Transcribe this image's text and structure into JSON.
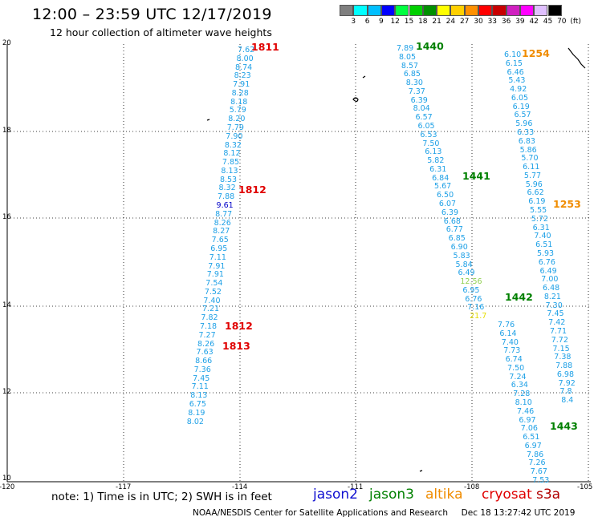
{
  "header": {
    "title": "12:00 – 23:59 UTC 12/17/2019",
    "subtitle": "12 hour collection of altimeter wave heights"
  },
  "legend": {
    "colors": [
      "#7f7f7f",
      "#00ffff",
      "#00bfff",
      "#0000ff",
      "#00ff40",
      "#00d000",
      "#009000",
      "#ffff00",
      "#ffd000",
      "#ff9000",
      "#ff0000",
      "#c80000",
      "#d020c0",
      "#ff00ff",
      "#e0c0ff",
      "#000000"
    ],
    "labels": [
      "3",
      "6",
      "9",
      "12",
      "15",
      "18",
      "21",
      "24",
      "27",
      "30",
      "33",
      "36",
      "39",
      "42",
      "45",
      "70",
      "(ft)"
    ]
  },
  "axes": {
    "x_labels": [
      "-120",
      "-117",
      "-114",
      "-111",
      "-108",
      "-105"
    ],
    "y_labels": [
      "20",
      "18",
      "16",
      "14",
      "12",
      "10"
    ]
  },
  "footer": {
    "note": "note: 1) Time is in UTC; 2) SWH is in feet",
    "credit": "NOAA/NESDIS Center for Satellite Applications and Research     Dec 18 13:27:42 UTC 2019",
    "satellites": [
      {
        "name": "jason2",
        "color": "#1010d0"
      },
      {
        "name": "jason3",
        "color": "#008000"
      },
      {
        "name": "altika",
        "color": "#f08c00"
      },
      {
        "name": "cryosat",
        "color": "#e00000"
      },
      {
        "name": "s3a",
        "color": "#b00000"
      }
    ]
  },
  "track_colors": {
    "cyan": "#1ea0e6",
    "blue": "#0000c8",
    "yellow": "#e6dc00",
    "green": "#90d050"
  },
  "tracks": [
    {
      "name": "track-west",
      "values": [
        "7.62",
        "8.00",
        "8.74",
        "8.23",
        "7.91",
        "8.28",
        "8.18",
        "5.79",
        "8.20",
        "7.79",
        "7.90",
        "8.32",
        "8.12",
        "7.85",
        "8.13",
        "8.53",
        "8.32",
        "7.88",
        "9.61",
        "8.77",
        "8.26",
        "8.27",
        "7.65",
        "6.95",
        "7.11",
        "7.91",
        "7.91",
        "7.54",
        "7.52",
        "7.40",
        "7.21",
        "7.82",
        "7.18",
        "7.27",
        "8.26",
        "7.63",
        "8.66",
        "7.36",
        "7.45",
        "7.11",
        "8.13",
        "6.75",
        "8.19",
        "8.02"
      ],
      "highlight": {
        "9.61": "blue"
      }
    },
    {
      "name": "track-1440",
      "values": [
        "7.89",
        "8.05",
        "8.57",
        "6.85",
        "8.30",
        "7.37",
        "6.39",
        "8.04",
        "6.57",
        "6.05",
        "6.53",
        "7.50",
        "6.13",
        "5.82",
        "6.31",
        "6.84",
        "5.67",
        "6.50",
        "6.07",
        "6.39",
        "6.68",
        "6.77",
        "6.85",
        "6.90",
        "5.83",
        "5.84",
        "6.49",
        "12.56",
        "6.95",
        "6.76",
        "7.16",
        "21.7"
      ],
      "highlight": {
        "12.56": "green",
        "21.7": "yellow"
      }
    },
    {
      "name": "track-1442",
      "values": [
        "7.76",
        "6.14",
        "7.40",
        "7.73",
        "6.74",
        "7.50",
        "7.24",
        "6.34",
        "7.28",
        "8.10",
        "7.46",
        "6.97",
        "7.06",
        "6.51",
        "6.97",
        "7.86",
        "7.26",
        "7.67",
        "7.53"
      ],
      "highlight": {}
    },
    {
      "name": "track-1254",
      "values": [
        "6.10",
        "6.15",
        "6.46",
        "5.43",
        "4.92",
        "6.05",
        "6.19",
        "6.57",
        "5.96",
        "6.33",
        "6.83",
        "5.86",
        "5.70",
        "6.11",
        "5.77",
        "5.96",
        "6.62",
        "6.19",
        "5.55",
        "5.72",
        "6.31",
        "7.40",
        "6.51",
        "5.93",
        "6.76",
        "6.49",
        "7.00",
        "6.48",
        "8.21",
        "7.30",
        "7.45",
        "7.42",
        "7.71",
        "7.72",
        "7.15",
        "7.38",
        "7.88",
        "6.98",
        "7.92",
        "7.8",
        "8.4"
      ],
      "highlight": {}
    }
  ],
  "pass_labels": [
    {
      "text": "1811",
      "color": "#e00000"
    },
    {
      "text": "1812",
      "color": "#e00000"
    },
    {
      "text": "1812",
      "color": "#e00000"
    },
    {
      "text": "1813",
      "color": "#e00000"
    },
    {
      "text": "1440",
      "color": "#008000"
    },
    {
      "text": "1441",
      "color": "#008000"
    },
    {
      "text": "1442",
      "color": "#008000"
    },
    {
      "text": "1443",
      "color": "#008000"
    },
    {
      "text": "1254",
      "color": "#f08c00"
    },
    {
      "text": "1253",
      "color": "#f08c00"
    }
  ]
}
